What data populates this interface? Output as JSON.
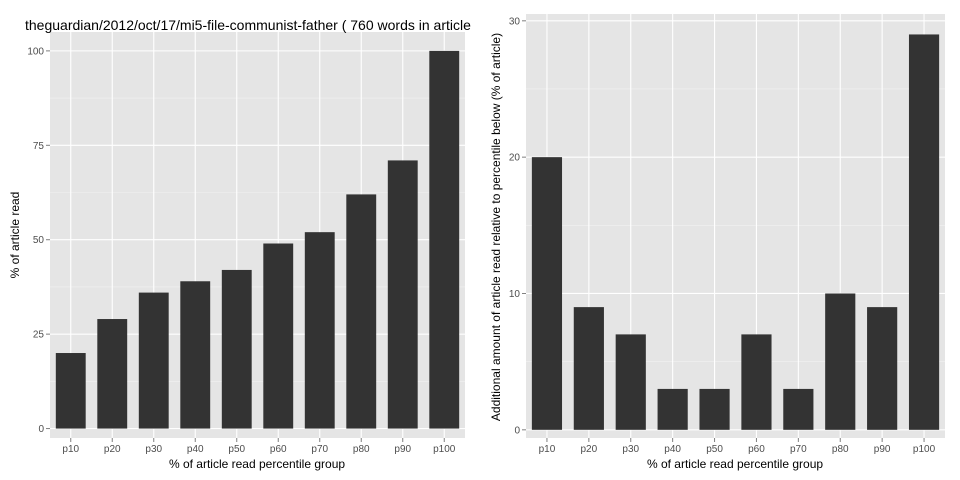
{
  "chart_data": [
    {
      "type": "bar",
      "title": "theguardian/2012/oct/17/mi5-file-communist-father ( 760 words in article",
      "xlabel": "% of article read percentile group",
      "ylabel": "% of article read",
      "categories": [
        "p10",
        "p20",
        "p30",
        "p40",
        "p50",
        "p60",
        "p70",
        "p80",
        "p90",
        "p100"
      ],
      "values": [
        20,
        29,
        36,
        39,
        42,
        49,
        52,
        62,
        71,
        100
      ],
      "ylim": [
        -2.5,
        105
      ],
      "yticks": [
        0,
        25,
        50,
        75,
        100
      ],
      "grid": true,
      "colors": {
        "bar": "#333333",
        "panel": "#e5e5e5",
        "grid": "#ffffff"
      }
    },
    {
      "type": "bar",
      "title": "",
      "xlabel": "% of article read percentile group",
      "ylabel": "Additional amount of article read relative to percentile below (% of article)",
      "categories": [
        "p10",
        "p20",
        "p30",
        "p40",
        "p50",
        "p60",
        "p70",
        "p80",
        "p90",
        "p100"
      ],
      "values": [
        20,
        9,
        7,
        3,
        3,
        7,
        3,
        10,
        9,
        29
      ],
      "ylim": [
        -0.6,
        30.5
      ],
      "yticks": [
        0,
        10,
        20,
        30
      ],
      "grid": true,
      "colors": {
        "bar": "#333333",
        "panel": "#e5e5e5",
        "grid": "#ffffff"
      }
    }
  ]
}
